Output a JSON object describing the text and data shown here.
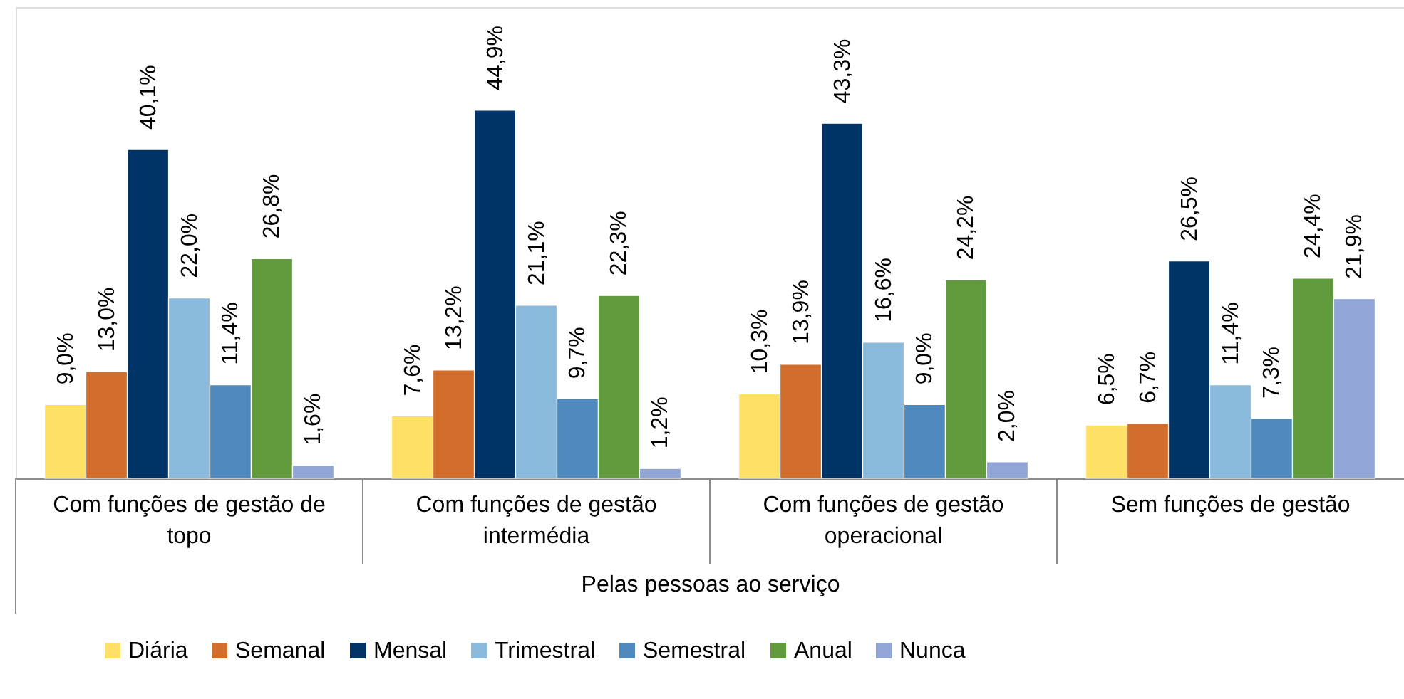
{
  "chart_data": {
    "type": "bar",
    "categories": [
      "Com funções de gestão de topo",
      "Com funções de gestão intermédia",
      "Com funções de gestão operacional",
      "Sem funções de gestão"
    ],
    "xlabel": "Pelas pessoas ao serviço",
    "series": [
      {
        "name": "Diária",
        "color": "#ffe066",
        "values": [
          9.0,
          7.6,
          10.3,
          6.5
        ],
        "value_labels": [
          "9,0%",
          "7,6%",
          "10,3%",
          "6,5%"
        ]
      },
      {
        "name": "Semanal",
        "color": "#d36d2c",
        "values": [
          13.0,
          13.2,
          13.9,
          6.7
        ],
        "value_labels": [
          "13,0%",
          "13,2%",
          "13,9%",
          "6,7%"
        ]
      },
      {
        "name": "Mensal",
        "color": "#003466",
        "values": [
          40.1,
          44.9,
          43.3,
          26.5
        ],
        "value_labels": [
          "40,1%",
          "44,9%",
          "43,3%",
          "26,5%"
        ]
      },
      {
        "name": "Trimestral",
        "color": "#89b9db",
        "values": [
          22.0,
          21.1,
          16.6,
          11.4
        ],
        "value_labels": [
          "22,0%",
          "21,1%",
          "16,6%",
          "11,4%"
        ]
      },
      {
        "name": "Semestral",
        "color": "#4f89bd",
        "values": [
          11.4,
          9.7,
          9.0,
          7.3
        ],
        "value_labels": [
          "11,4%",
          "9,7%",
          "9,0%",
          "7,3%"
        ]
      },
      {
        "name": "Anual",
        "color": "#629a3e",
        "values": [
          26.8,
          22.3,
          24.2,
          24.4
        ],
        "value_labels": [
          "26,8%",
          "22,3%",
          "24,2%",
          "24,4%"
        ]
      },
      {
        "name": "Nunca",
        "color": "#91a5d6",
        "values": [
          1.6,
          1.2,
          2.0,
          21.9
        ],
        "value_labels": [
          "1,6%",
          "1,2%",
          "2,0%",
          "21,9%"
        ]
      }
    ],
    "legend": "bottom",
    "tick_labels": "x"
  }
}
